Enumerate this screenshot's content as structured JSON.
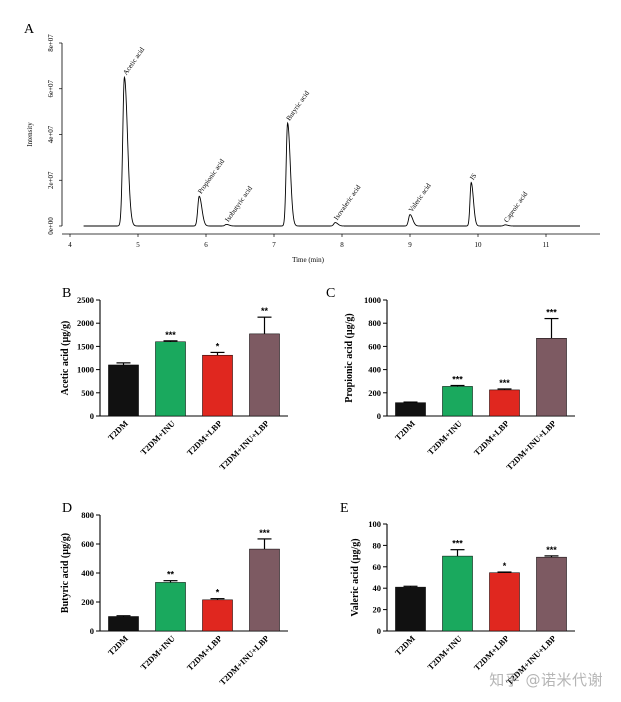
{
  "chart_data": [
    {
      "panel": "A",
      "type": "line",
      "xlabel": "Time (min)",
      "ylabel": "Intensity",
      "xlim": [
        4,
        11.8
      ],
      "ylim": [
        0,
        80000000
      ],
      "x_ticks": [
        "4",
        "5",
        "6",
        "7",
        "8",
        "9",
        "10",
        "11"
      ],
      "y_ticks": [
        "0e+00",
        "2e+07",
        "4e+07",
        "6e+07",
        "8e+07"
      ],
      "peaks": [
        {
          "name": "Acetic acid",
          "x": 4.8,
          "y": 65000000,
          "w": 0.035
        },
        {
          "name": "Propionic acid",
          "x": 5.9,
          "y": 13000000,
          "w": 0.03
        },
        {
          "name": "Isobutyric acid",
          "x": 6.3,
          "y": 700000,
          "w": 0.03
        },
        {
          "name": "Butyric acid",
          "x": 7.2,
          "y": 45000000,
          "w": 0.03
        },
        {
          "name": "Isovaleric acid",
          "x": 7.9,
          "y": 1500000,
          "w": 0.03
        },
        {
          "name": "Valeric acid",
          "x": 9.0,
          "y": 5000000,
          "w": 0.03
        },
        {
          "name": "IS",
          "x": 9.9,
          "y": 19000000,
          "w": 0.025
        },
        {
          "name": "Caproic acid",
          "x": 10.4,
          "y": 500000,
          "w": 0.03
        }
      ]
    },
    {
      "panel": "B",
      "type": "bar",
      "ylabel": "Acetic acid (µg/g)",
      "ylim": [
        0,
        2500
      ],
      "y_ticks": [
        "0",
        "500",
        "1000",
        "1500",
        "2000",
        "2500"
      ],
      "categories": [
        "T2DM",
        "T2DM+INU",
        "T2DM+LBP",
        "T2DM+INU+LBP"
      ],
      "values": [
        1100,
        1600,
        1310,
        1770
      ],
      "errors": [
        45,
        20,
        60,
        360
      ],
      "significance": [
        "",
        "***",
        "*",
        "**"
      ]
    },
    {
      "panel": "C",
      "type": "bar",
      "ylabel": "Propionic acid (µg/g)",
      "ylim": [
        0,
        1000
      ],
      "y_ticks": [
        "0",
        "200",
        "400",
        "600",
        "800",
        "1000"
      ],
      "categories": [
        "T2DM",
        "T2DM+INU",
        "T2DM+LBP",
        "T2DM+INU+LBP"
      ],
      "values": [
        115,
        255,
        225,
        670
      ],
      "errors": [
        5,
        8,
        8,
        170
      ],
      "significance": [
        "",
        "***",
        "***",
        "***"
      ]
    },
    {
      "panel": "D",
      "type": "bar",
      "ylabel": "Butyric acid (µg/g)",
      "ylim": [
        0,
        800
      ],
      "y_ticks": [
        "0",
        "200",
        "400",
        "600",
        "800"
      ],
      "categories": [
        "T2DM",
        "T2DM+INU",
        "T2DM+LBP",
        "T2DM+INU+LBP"
      ],
      "values": [
        100,
        335,
        215,
        565
      ],
      "errors": [
        5,
        12,
        8,
        70
      ],
      "significance": [
        "",
        "**",
        "*",
        "***"
      ]
    },
    {
      "panel": "E",
      "type": "bar",
      "ylabel": "Valeric acid (µg/g)",
      "ylim": [
        0,
        100
      ],
      "y_ticks": [
        "0",
        "20",
        "40",
        "60",
        "80",
        "100"
      ],
      "categories": [
        "T2DM",
        "T2DM+INU",
        "T2DM+LBP",
        "T2DM+INU+LBP"
      ],
      "values": [
        41,
        70,
        54.5,
        69
      ],
      "errors": [
        0.8,
        6,
        0.6,
        1.2
      ],
      "significance": [
        "",
        "***",
        "*",
        "***"
      ]
    }
  ],
  "colors": {
    "T2DM": "#111111",
    "T2DM+INU": "#1aa95e",
    "T2DM+LBP": "#e0271f",
    "T2DM+INU+LBP": "#7d5a62"
  },
  "watermark": "知乎 @诺米代谢"
}
